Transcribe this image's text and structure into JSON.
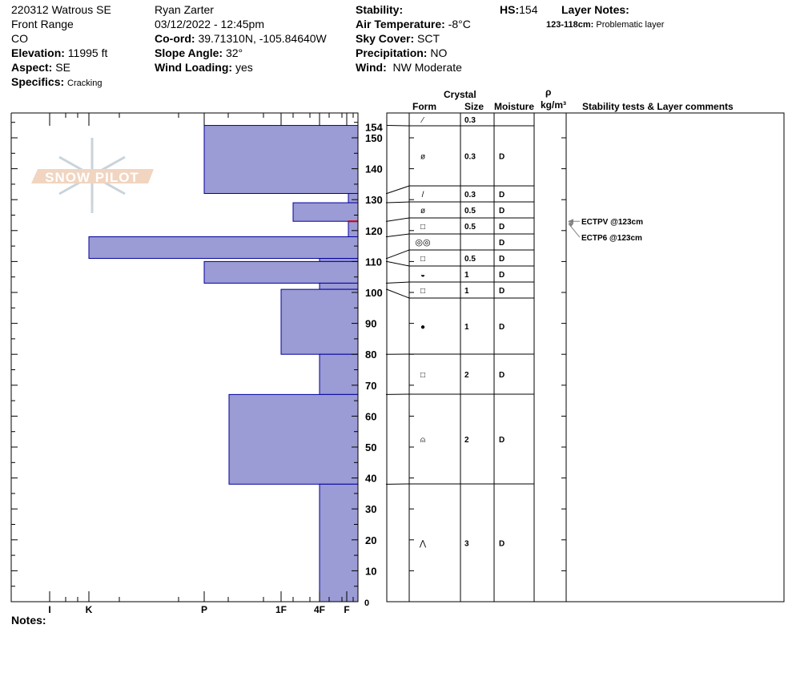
{
  "header": {
    "col1": {
      "site": "220312 Watrous SE",
      "range": "Front Range",
      "state": "CO",
      "elevation_label": "Elevation:",
      "elevation": "11995 ft",
      "aspect_label": "Aspect:",
      "aspect": "SE",
      "specifics_label": "Specifics:",
      "specifics": "Cracking"
    },
    "col2": {
      "observer": "Ryan Zarter",
      "datetime": "03/12/2022 - 12:45pm",
      "coord_label": "Co-ord:",
      "coord": "39.71310N, -105.84640W",
      "slope_label": "Slope Angle:",
      "slope": "32°",
      "wind_loading_label": "Wind Loading:",
      "wind_loading": "yes"
    },
    "col3": {
      "stability_label": "Stability:",
      "air_temp_label": "Air Temperature:",
      "air_temp": "-8°C",
      "sky_label": "Sky Cover:",
      "sky": "SCT",
      "precip_label": "Precipitation:",
      "precip": "NO",
      "wind_label": "Wind:",
      "wind": "NW Moderate"
    },
    "hs_label": "HS:",
    "hs": "154",
    "layer_notes_label": "Layer Notes:",
    "layer_note_range": "123-118cm:",
    "layer_note_text": "Problematic layer"
  },
  "logo": "SNOW PILOT",
  "notes_label": "Notes:",
  "table_headers": {
    "crystal": "Crystal",
    "form": "Form",
    "size": "Size",
    "moisture": "Moisture",
    "rho": "ρ",
    "density_unit": "kg/m³",
    "comments": "Stability tests & Layer comments"
  },
  "chart_data": {
    "type": "snow-profile",
    "y_axis": {
      "unit": "cm",
      "range": [
        0,
        154
      ],
      "ticks": [
        0,
        10,
        20,
        30,
        40,
        50,
        60,
        70,
        80,
        90,
        100,
        110,
        120,
        130,
        140,
        150,
        154
      ]
    },
    "x_axis": {
      "ticks": [
        "I",
        "K",
        "P",
        "1F",
        "4F",
        "F"
      ]
    },
    "layers": [
      {
        "top": 154,
        "bottom": 132,
        "hardness": "P"
      },
      {
        "top": 132,
        "bottom": 129,
        "hardness": "F"
      },
      {
        "top": 129,
        "bottom": 123,
        "hardness": "4F+"
      },
      {
        "top": 123,
        "bottom": 118,
        "hardness": "F"
      },
      {
        "top": 118,
        "bottom": 111,
        "hardness": "K"
      },
      {
        "top": 111,
        "bottom": 110,
        "hardness": "4F"
      },
      {
        "top": 110,
        "bottom": 103,
        "hardness": "P"
      },
      {
        "top": 103,
        "bottom": 101,
        "hardness": "4F"
      },
      {
        "top": 101,
        "bottom": 80,
        "hardness": "1F"
      },
      {
        "top": 80,
        "bottom": 67,
        "hardness": "4F"
      },
      {
        "top": 67,
        "bottom": 38,
        "hardness": "P-"
      },
      {
        "top": 38,
        "bottom": 0,
        "hardness": "4F"
      }
    ],
    "problem_layer_cm": 123,
    "colors": {
      "bar_fill": "#9b9bd5",
      "bar_stroke": "#00009c",
      "problem_line": "#d00000"
    },
    "crystal_rows": [
      {
        "form_icon": "decomposing-particle-icon",
        "form": "⁄",
        "size": "0.3",
        "moisture": "",
        "depth": 154
      },
      {
        "form_icon": "decomposing-fragment-icon",
        "form": "ø",
        "size": "0.3",
        "moisture": "D",
        "depth": 132
      },
      {
        "form_icon": "precipitation-particle-icon",
        "form": "/",
        "size": "0.3",
        "moisture": "D",
        "depth": 129
      },
      {
        "form_icon": "decomposing-fragment-icon",
        "form": "ø",
        "size": "0.5",
        "moisture": "D",
        "depth": 123
      },
      {
        "form_icon": "faceted-crystal-icon",
        "form": "□",
        "size": "0.5",
        "moisture": "D",
        "depth": 118
      },
      {
        "form_icon": "melt-freeze-crust-icon",
        "form": "◎◎",
        "size": "",
        "moisture": "D",
        "depth": 111
      },
      {
        "form_icon": "faceted-crystal-icon",
        "form": "□",
        "size": "0.5",
        "moisture": "D",
        "depth": 110
      },
      {
        "form_icon": "rounding-facet-icon",
        "form": "◒",
        "size": "1",
        "moisture": "D",
        "depth": 103
      },
      {
        "form_icon": "faceted-crystal-icon",
        "form": "□",
        "size": "1",
        "moisture": "D",
        "depth": 101
      },
      {
        "form_icon": "rounded-grain-icon",
        "form": "●",
        "size": "1",
        "moisture": "D",
        "depth": 80
      },
      {
        "form_icon": "faceted-crystal-icon",
        "form": "□",
        "size": "2",
        "moisture": "D",
        "depth": 67
      },
      {
        "form_icon": "depth-hoar-faceting-icon",
        "form": "⍝",
        "size": "2",
        "moisture": "D",
        "depth": 38
      },
      {
        "form_icon": "depth-hoar-icon",
        "form": "⋀",
        "size": "3",
        "moisture": "D",
        "depth": 0
      }
    ],
    "stability_tests": [
      {
        "label": "ECTPV @123cm",
        "depth": 123
      },
      {
        "label": "ECTP6 @123cm",
        "depth": 123
      }
    ]
  }
}
